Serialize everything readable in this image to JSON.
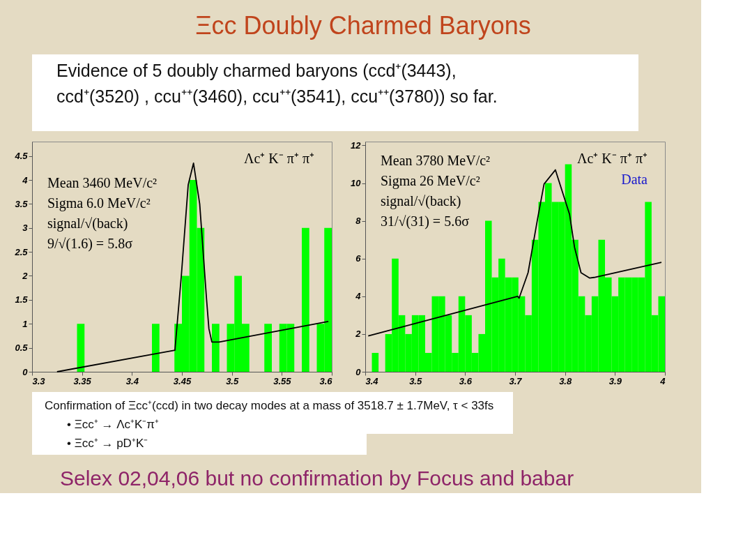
{
  "chart_data": [
    {
      "type": "histogram",
      "title": "Ξcc Doubly Charmed Baryons",
      "subtitle": "Evidence of 5 doubly charmed baryons (ccd⁺(3443),\nccd⁺(3520) , ccu⁺⁺(3460), ccu⁺⁺(3541), ccu⁺⁺(3780)) so far.",
      "bins": [
        3.3,
        3.3075,
        3.315,
        3.3225,
        3.33,
        3.3375,
        3.345,
        3.3525,
        3.36,
        3.3675,
        3.375,
        3.3825,
        3.39,
        3.3975,
        3.405,
        3.4125,
        3.42,
        3.4275,
        3.435,
        3.4425,
        3.45,
        3.4575,
        3.465,
        3.4725,
        3.48,
        3.4875,
        3.495,
        3.5025,
        3.51,
        3.5175,
        3.525,
        3.5325,
        3.54,
        3.5475,
        3.555,
        3.5625,
        3.57,
        3.5775,
        3.585,
        3.5925,
        3.6
      ],
      "values": [
        0,
        0,
        0,
        0,
        0,
        0,
        1,
        0,
        0,
        0,
        0,
        0,
        0,
        0,
        0,
        0,
        1,
        0,
        0,
        1,
        2,
        4,
        3,
        0,
        1,
        0,
        1,
        2,
        1,
        0,
        0,
        1,
        0,
        1,
        1,
        0,
        3,
        0,
        1,
        3
      ],
      "color": "#00ff00",
      "xlim": [
        3.3,
        3.6
      ],
      "ylim": [
        0,
        4.8
      ],
      "xticks": [
        3.3,
        3.35,
        3.4,
        3.45,
        3.5,
        3.55,
        3.6
      ],
      "yticks": [
        0,
        0.5,
        1,
        1.5,
        2,
        2.5,
        3,
        3.5,
        4,
        4.5
      ],
      "grid": false,
      "series": [
        {
          "type": "line",
          "color": "#000000",
          "x": [
            3.325,
            3.443,
            3.4494,
            3.4563,
            3.4616,
            3.4678,
            3.4747,
            3.477,
            3.48,
            3.4873,
            3.5966
          ],
          "values": [
            0,
            0.45,
            2,
            3.9,
            4.35,
            3.5,
            1.5,
            0.9,
            0.62,
            0.62,
            1.05
          ]
        }
      ],
      "annotations": [
        "Λc⁺ K⁻ π⁺ π⁺",
        "Mean 3460 MeV/c²",
        "Sigma 6.0 MeV/c²",
        "signal/√(back)",
        "9/√(1.6) = 5.8σ",
        "Confirmation of Ξcc⁺(ccd) in two decay modes at a mass of 3518.7 ± 1.7MeV, τ < 33fs",
        "• Ξcc⁺ → Λc⁺K⁻π⁺",
        "• Ξcc⁺ → pD⁺K⁻",
        "Selex 02,04,06 but no confirmation by Focus and babar"
      ]
    },
    {
      "type": "histogram",
      "bins": [
        3.4,
        3.4133,
        3.4267,
        3.44,
        3.4533,
        3.4667,
        3.48,
        3.4933,
        3.5067,
        3.52,
        3.5333,
        3.5467,
        3.56,
        3.5733,
        3.5867,
        3.6,
        3.6133,
        3.6267,
        3.64,
        3.6533,
        3.6667,
        3.68,
        3.6933,
        3.7067,
        3.72,
        3.7333,
        3.7467,
        3.76,
        3.7733,
        3.7867,
        3.8,
        3.8133,
        3.8267,
        3.84,
        3.8533,
        3.8667,
        3.88,
        3.8933,
        3.9067,
        3.92,
        3.9333,
        3.9467,
        3.96,
        3.9733,
        3.9867,
        4
      ],
      "values": [
        0,
        1,
        0,
        2,
        6,
        3,
        2,
        3,
        3,
        1,
        4,
        4,
        3,
        1,
        4,
        3,
        1,
        2,
        8,
        5,
        6,
        5,
        5,
        4,
        3,
        7,
        9,
        10,
        9,
        9,
        11,
        7,
        4,
        3,
        4,
        7,
        5,
        4,
        5,
        5,
        5,
        5,
        9,
        3,
        4
      ],
      "color": "#00ff00",
      "xlim": [
        3.4,
        4
      ],
      "ylim": [
        0,
        12.2
      ],
      "xticks": [
        3.4,
        3.5,
        3.6,
        3.7,
        3.8,
        3.9,
        4
      ],
      "yticks": [
        0,
        2,
        4,
        6,
        8,
        10,
        12
      ],
      "grid": false,
      "series": [
        {
          "type": "line",
          "color": "#000000",
          "x": [
            3.406,
            3.705,
            3.708,
            3.726,
            3.745,
            3.758,
            3.7807,
            3.809,
            3.819,
            3.832,
            3.849,
            3.858,
            3.993
          ],
          "values": [
            1.9,
            4.0,
            3.9,
            5.25,
            8.1,
            9.95,
            10.7,
            8.35,
            6.6,
            5.25,
            4.97,
            5.0,
            5.8
          ]
        }
      ],
      "annotations": [
        "Λc⁺ K⁻ π⁺ π⁺",
        "Data",
        "Mean 3780 MeV/c²",
        "Sigma 26 MeV/c²",
        "signal/√(back)",
        "31/√(31) = 5.6σ"
      ]
    }
  ]
}
